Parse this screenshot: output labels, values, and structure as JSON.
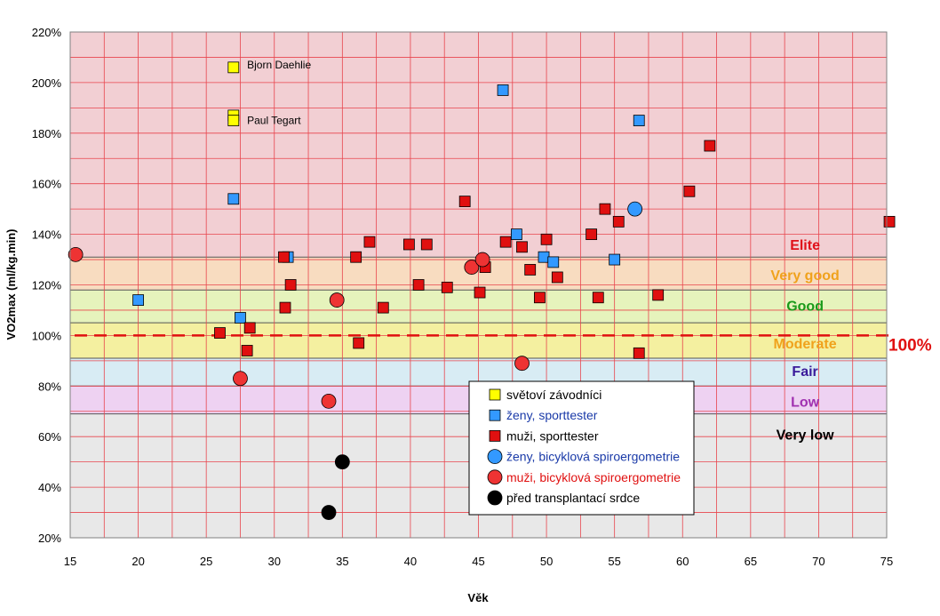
{
  "chart_data": {
    "type": "scatter",
    "xlabel": "Věk",
    "ylabel": "VO2max (ml/kg.min)",
    "xlim": [
      15,
      75
    ],
    "ylim": [
      20,
      220
    ],
    "x_ticks": [
      "15",
      "20",
      "25",
      "30",
      "35",
      "40",
      "45",
      "50",
      "55",
      "60",
      "65",
      "70",
      "75"
    ],
    "y_ticks": [
      "20%",
      "40%",
      "60%",
      "80%",
      "100%",
      "120%",
      "140%",
      "160%",
      "180%",
      "200%",
      "220%"
    ],
    "x_tick_values": [
      15,
      20,
      25,
      30,
      35,
      40,
      45,
      50,
      55,
      60,
      65,
      70,
      75
    ],
    "y_tick_values": [
      20,
      40,
      60,
      80,
      100,
      120,
      140,
      160,
      180,
      200,
      220
    ],
    "zones": [
      {
        "name": "Elite",
        "from": 131,
        "to": 220,
        "fill": "#f2cfd3",
        "label_color": "#e0101a",
        "label_y": 136
      },
      {
        "name": "Very good",
        "from": 118,
        "to": 131,
        "fill": "#f8dcc0",
        "label_color": "#f0a21c",
        "label_y": 124
      },
      {
        "name": "Good",
        "from": 105,
        "to": 118,
        "fill": "#e6f3bc",
        "label_color": "#1a9a1a",
        "label_y": 112
      },
      {
        "name": "Moderate",
        "from": 91,
        "to": 105,
        "fill": "#f4f0a0",
        "label_color": "#f0a21c",
        "label_y": 97
      },
      {
        "name": "Fair",
        "from": 80,
        "to": 91,
        "fill": "#d8ecf4",
        "label_color": "#3a1a9a",
        "label_y": 86
      },
      {
        "name": "Low",
        "from": 69,
        "to": 80,
        "fill": "#eed2f2",
        "label_color": "#a030b0",
        "label_y": 74
      },
      {
        "name": "Very low",
        "from": 20,
        "to": 69,
        "fill": "#e8e8e8",
        "label_color": "#000000",
        "label_y": 61
      }
    ],
    "reference_line": {
      "y": 100,
      "label": "100%",
      "color": "#e01010"
    },
    "series": [
      {
        "name": "světoví závodníci",
        "marker": "square",
        "color": "#ffff00",
        "label_color": "#000000",
        "points": [
          [
            27,
            206
          ],
          [
            27,
            187
          ],
          [
            27,
            185
          ]
        ]
      },
      {
        "name": "ženy, sporttester",
        "marker": "square",
        "color": "#3399ff",
        "label_color": "#1a3aa8",
        "points": [
          [
            20,
            114
          ],
          [
            27,
            154
          ],
          [
            27.5,
            107
          ],
          [
            31,
            131
          ],
          [
            46.8,
            197
          ],
          [
            47.8,
            140
          ],
          [
            49.8,
            131
          ],
          [
            50.5,
            129
          ],
          [
            55,
            130
          ],
          [
            56.8,
            185
          ]
        ]
      },
      {
        "name": "muži, sporttester",
        "marker": "square",
        "color": "#e01010",
        "label_color": "#000000",
        "points": [
          [
            26,
            101
          ],
          [
            28,
            94
          ],
          [
            28.2,
            103
          ],
          [
            30.7,
            131
          ],
          [
            30.8,
            111
          ],
          [
            31.2,
            120
          ],
          [
            36,
            131
          ],
          [
            36.2,
            97
          ],
          [
            37,
            137
          ],
          [
            38,
            111
          ],
          [
            39.9,
            136
          ],
          [
            40.6,
            120
          ],
          [
            41.2,
            136
          ],
          [
            42.7,
            119
          ],
          [
            44,
            153
          ],
          [
            45.1,
            117
          ],
          [
            45.5,
            127
          ],
          [
            47,
            137
          ],
          [
            48.2,
            135
          ],
          [
            48.8,
            126
          ],
          [
            49.5,
            115
          ],
          [
            50,
            138
          ],
          [
            50.8,
            123
          ],
          [
            53.3,
            140
          ],
          [
            53.8,
            115
          ],
          [
            54.3,
            150
          ],
          [
            55.3,
            145
          ],
          [
            56.8,
            93
          ],
          [
            58.2,
            116
          ],
          [
            60.5,
            157
          ],
          [
            62,
            175
          ],
          [
            75.2,
            145
          ]
        ]
      },
      {
        "name": "ženy, bicyklová spiroergometrie",
        "marker": "circle",
        "color": "#3399ff",
        "label_color": "#1a3aa8",
        "points": [
          [
            56.5,
            150
          ]
        ]
      },
      {
        "name": "muži, bicyklová spiroergometrie",
        "marker": "circle",
        "color": "#ee3333",
        "label_color": "#e01010",
        "points": [
          [
            15.4,
            132
          ],
          [
            27.5,
            83
          ],
          [
            34,
            74
          ],
          [
            34.6,
            114
          ],
          [
            44.5,
            127
          ],
          [
            45.3,
            130
          ],
          [
            48.2,
            89
          ]
        ]
      },
      {
        "name": "před transplantací srdce",
        "marker": "circle",
        "color": "#000000",
        "label_color": "#000000",
        "points": [
          [
            34,
            30
          ],
          [
            35,
            50
          ]
        ]
      }
    ],
    "annotations": [
      {
        "text": "Bjorn Daehlie",
        "x": 28,
        "y": 207
      },
      {
        "text": "Paul Tegart",
        "x": 28,
        "y": 185
      }
    ]
  }
}
